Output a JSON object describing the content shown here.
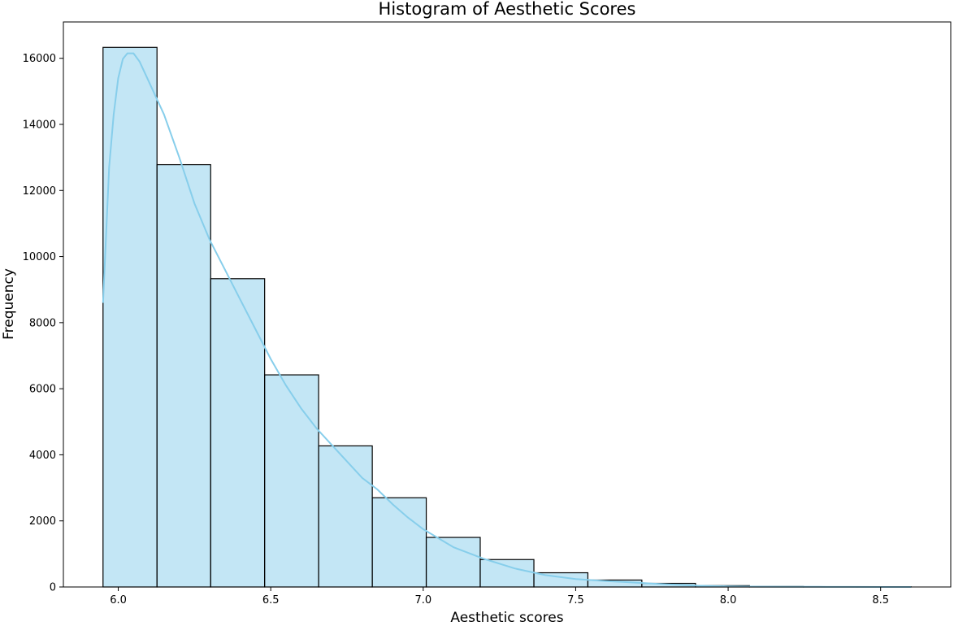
{
  "chart_data": {
    "type": "bar",
    "title": "Histogram of Aesthetic Scores",
    "xlabel": "Aesthetic scores",
    "ylabel": "Frequency",
    "xlim": [
      5.82,
      8.73
    ],
    "ylim": [
      0,
      17100
    ],
    "xticks": [
      6.0,
      6.5,
      7.0,
      7.5,
      8.0,
      8.5
    ],
    "xtick_labels": [
      "6.0",
      "6.5",
      "7.0",
      "7.5",
      "8.0",
      "8.5"
    ],
    "yticks": [
      0,
      2000,
      4000,
      6000,
      8000,
      10000,
      12000,
      14000,
      16000
    ],
    "ytick_labels": [
      "0",
      "2000",
      "4000",
      "6000",
      "8000",
      "10000",
      "12000",
      "14000",
      "16000"
    ],
    "bin_edges": [
      5.95,
      6.127,
      6.303,
      6.48,
      6.657,
      6.833,
      7.01,
      7.187,
      7.363,
      7.54,
      7.717,
      7.893,
      8.07,
      8.247,
      8.423,
      8.6
    ],
    "counts": [
      16330,
      12780,
      9330,
      6420,
      4270,
      2700,
      1500,
      830,
      430,
      210,
      110,
      40,
      15,
      8,
      5
    ],
    "bar_color": "#87CEEB",
    "bar_alpha": 0.5,
    "edge_color": "#000000",
    "kde": {
      "color": "#87CEEB",
      "x": [
        5.95,
        5.97,
        5.985,
        6.0,
        6.015,
        6.03,
        6.05,
        6.07,
        6.1,
        6.15,
        6.2,
        6.25,
        6.3,
        6.35,
        6.4,
        6.45,
        6.5,
        6.55,
        6.6,
        6.65,
        6.7,
        6.75,
        6.8,
        6.85,
        6.9,
        6.95,
        7.0,
        7.1,
        7.2,
        7.3,
        7.4,
        7.5,
        7.6,
        7.7,
        7.8,
        7.9,
        8.0,
        8.1,
        8.2,
        8.3,
        8.4,
        8.5,
        8.6
      ],
      "y": [
        8600,
        12700,
        14300,
        15400,
        15980,
        16150,
        16150,
        15900,
        15300,
        14300,
        13000,
        11600,
        10500,
        9600,
        8700,
        7800,
        6900,
        6100,
        5400,
        4800,
        4300,
        3800,
        3300,
        2950,
        2500,
        2100,
        1750,
        1200,
        850,
        560,
        360,
        240,
        180,
        130,
        80,
        40,
        20,
        10,
        6,
        4,
        2,
        1,
        0
      ]
    },
    "grid": false,
    "legend": "none"
  }
}
